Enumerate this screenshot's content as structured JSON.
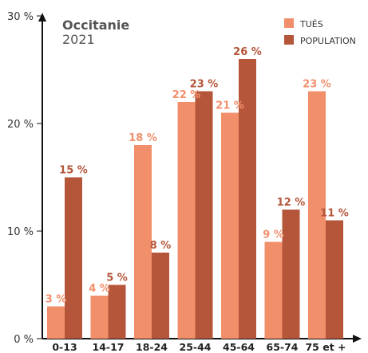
{
  "chart_data": {
    "type": "bar",
    "title": "Occitanie",
    "subtitle": "2021",
    "categories": [
      "0-13",
      "14-17",
      "18-24",
      "25-44",
      "45-64",
      "65-74",
      "75 et +"
    ],
    "series": [
      {
        "name": "TUÉS",
        "color": "#f28f6b",
        "values": [
          3,
          4,
          18,
          22,
          21,
          9,
          23
        ],
        "labels": [
          "3 %",
          "4 %",
          "18 %",
          "22 %",
          "21 %",
          "9 %",
          "23 %"
        ]
      },
      {
        "name": "POPULATION",
        "color": "#b5563a",
        "values": [
          15,
          5,
          8,
          23,
          26,
          12,
          11
        ],
        "labels": [
          "15 %",
          "5 %",
          "8 %",
          "23 %",
          "26 %",
          "12 %",
          "11 %"
        ]
      }
    ],
    "ylim": [
      0,
      30
    ],
    "yticks": [
      0,
      10,
      20,
      30
    ],
    "ytick_labels": [
      "0 %",
      "10 %",
      "20 %",
      "30 %"
    ],
    "xlabel": "",
    "ylabel": "",
    "grid": false,
    "legend_position": "top-right"
  }
}
